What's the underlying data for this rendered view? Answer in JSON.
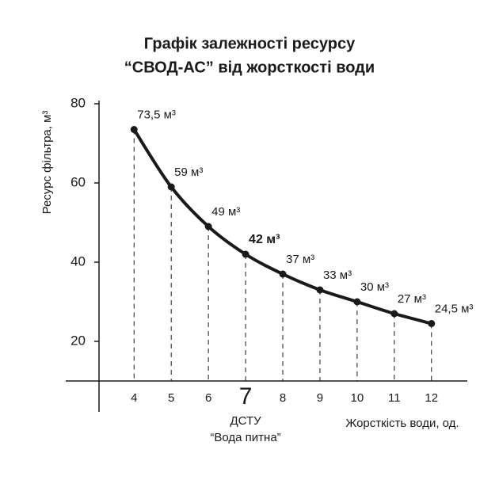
{
  "chart_data": {
    "type": "line",
    "title": [
      "Графік залежності ресурсу",
      "“СВОД-АС” від жорсткості води"
    ],
    "y_label": "Ресурс фільтра, м³",
    "x_label": "Жорсткість води, од.",
    "x": [
      4,
      5,
      6,
      7,
      8,
      9,
      10,
      11,
      12
    ],
    "series": [
      {
        "name": "СВОД-АС",
        "color": "#1a1a1a",
        "values": [
          73.5,
          59,
          49,
          42,
          37,
          33,
          30,
          27,
          24.5
        ],
        "value_labels": [
          "73,5 м³",
          "59 м³",
          "49 м³",
          "42 м³",
          "37 м³",
          "33 м³",
          "30 м³",
          "27 м³",
          "24,5 м³"
        ]
      }
    ],
    "xlim": [
      3.1,
      12.9
    ],
    "xticks": [
      4,
      5,
      6,
      7,
      8,
      9,
      10,
      11,
      12
    ],
    "ylim": [
      10,
      80
    ],
    "yticks": [
      20,
      40,
      60,
      80
    ],
    "highlight": 7,
    "annotation": [
      "ДСТУ",
      "“Вода питна”"
    ]
  }
}
